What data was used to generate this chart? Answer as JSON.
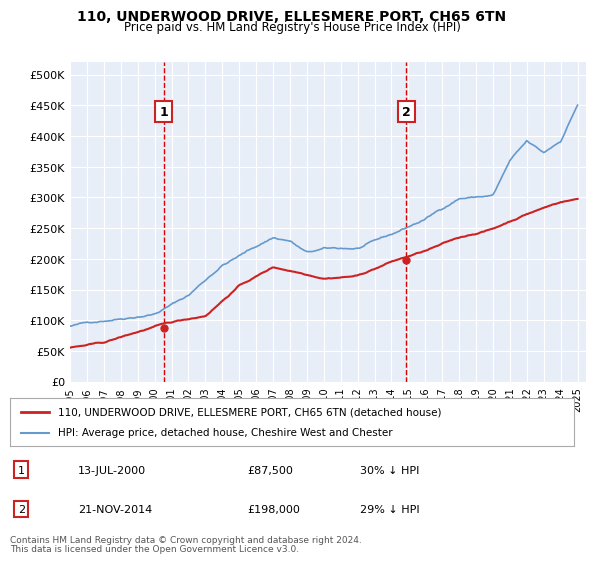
{
  "title1": "110, UNDERWOOD DRIVE, ELLESMERE PORT, CH65 6TN",
  "title2": "Price paid vs. HM Land Registry's House Price Index (HPI)",
  "bg_color": "#e8eef8",
  "plot_bg_color": "#e8eef8",
  "ylim": [
    0,
    520000
  ],
  "yticks": [
    0,
    50000,
    100000,
    150000,
    200000,
    250000,
    300000,
    350000,
    400000,
    450000,
    500000
  ],
  "ytick_labels": [
    "£0",
    "£50K",
    "£100K",
    "£150K",
    "£200K",
    "£250K",
    "£300K",
    "£350K",
    "£400K",
    "£450K",
    "£500K"
  ],
  "xlabel_years": [
    "1995",
    "1996",
    "1997",
    "1998",
    "1999",
    "2000",
    "2001",
    "2002",
    "2003",
    "2004",
    "2005",
    "2006",
    "2007",
    "2008",
    "2009",
    "2010",
    "2011",
    "2012",
    "2013",
    "2014",
    "2015",
    "2016",
    "2017",
    "2018",
    "2019",
    "2020",
    "2021",
    "2022",
    "2023",
    "2024",
    "2025"
  ],
  "sale1_date": 2000.53,
  "sale1_price": 87500,
  "sale1_label": "1",
  "sale2_date": 2014.89,
  "sale2_price": 198000,
  "sale2_label": "2",
  "hpi_color": "#6699cc",
  "price_color": "#cc2222",
  "marker_box_color": "#cc2222",
  "grid_color": "#ffffff",
  "footer_text1": "Contains HM Land Registry data © Crown copyright and database right 2024.",
  "footer_text2": "This data is licensed under the Open Government Licence v3.0.",
  "legend_line1": "110, UNDERWOOD DRIVE, ELLESMERE PORT, CH65 6TN (detached house)",
  "legend_line2": "HPI: Average price, detached house, Cheshire West and Chester",
  "table_row1": [
    "1",
    "13-JUL-2000",
    "£87,500",
    "30% ↓ HPI"
  ],
  "table_row2": [
    "2",
    "21-NOV-2014",
    "£198,000",
    "29% ↓ HPI"
  ]
}
